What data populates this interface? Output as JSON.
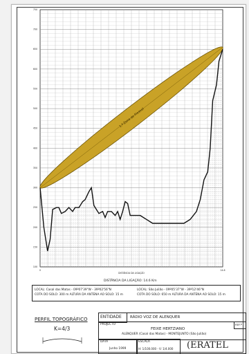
{
  "chart_data": {
    "type": "line",
    "title": "",
    "x_axis_label": "DISTÂNCIA DA LIGAÇÃO",
    "x_tick_labels": [
      "0",
      "14.6"
    ],
    "y_tick_labels": [
      "100",
      "150",
      "200",
      "250",
      "300",
      "350",
      "400",
      "450",
      "500",
      "550",
      "600",
      "650",
      "700",
      "750"
    ],
    "y_range": [
      100,
      750
    ],
    "x_range": [
      0,
      14.6
    ],
    "fresnel_label": "1.ª Zona de Fresnel",
    "beam_start": {
      "x": 0,
      "y": 300
    },
    "beam_end": {
      "x": 14.6,
      "y": 655
    },
    "terrain": {
      "x": [
        0,
        0.3,
        0.6,
        0.8,
        1.0,
        1.3,
        1.5,
        1.7,
        2.0,
        2.3,
        2.6,
        2.8,
        3.1,
        3.4,
        3.6,
        3.9,
        4.1,
        4.3,
        4.7,
        5.0,
        5.2,
        5.4,
        5.7,
        6.0,
        6.2,
        6.4,
        6.6,
        6.8,
        7.0,
        7.2,
        7.5,
        7.7,
        8.0,
        8.5,
        9.0,
        9.5,
        10.0,
        10.5,
        11.0,
        11.5,
        12.0,
        12.5,
        12.8,
        13.1,
        13.4,
        13.6,
        13.8,
        14.1,
        14.3,
        14.6
      ],
      "y": [
        300,
        200,
        140,
        170,
        245,
        250,
        250,
        235,
        240,
        250,
        240,
        250,
        250,
        265,
        270,
        290,
        300,
        255,
        235,
        240,
        225,
        240,
        240,
        230,
        240,
        220,
        240,
        265,
        260,
        230,
        230,
        230,
        230,
        220,
        210,
        210,
        210,
        210,
        210,
        210,
        220,
        240,
        270,
        320,
        340,
        400,
        520,
        560,
        620,
        650
      ]
    }
  },
  "distance_text": "DISTÂNCIA DA LIGAÇÃO: 14.6 Km",
  "station_left": {
    "line1": "LOCAL: Casal das Matas  -  09º07'39\"W  -  39º02'56\"N",
    "line2": "COTA DO SOLO: 300 m     ALTURA DA ANTENA AO SOLO: 15 m"
  },
  "station_right": {
    "line1": "LOCAL: São Julião  -  09º05'37\"W  -  39º12'46\"N",
    "line2": "COTA DO SOLO: 650 m     ALTURA DA ANTENA AO SOLO: 15 m"
  },
  "perfil": {
    "title": "PERFIL TOPOGRÁFICO",
    "k_value": "K=4/3"
  },
  "titleblock": {
    "entidade_label": "ENTIDADE",
    "entidade_value": "RÁDIO VOZ DE ALENQUER",
    "projecto_label": "PROJECTO",
    "projecto_line1": "FEIXE HERTZIANO",
    "projecto_line2": "ALENQUER (Casal das Matas) - MONTEJUNTO (São Julião)",
    "ref_label": "REF.ª",
    "data_label": "DATA",
    "data_value": "Junho 1999",
    "escala_label": "ESCALA",
    "escala_value": "H: 1/100.000 - V: 1/4.000",
    "logo_text": "ERATEL"
  }
}
